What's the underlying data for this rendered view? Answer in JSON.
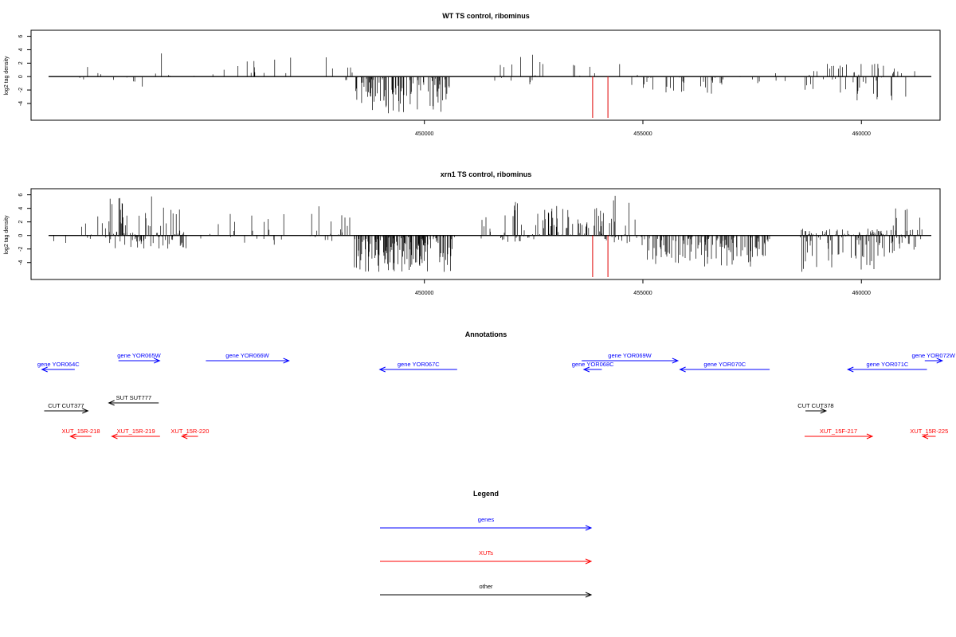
{
  "chart_data": [
    {
      "type": "bar",
      "title": "WT TS control, ribominus",
      "xlabel": "",
      "ylabel": "log2 tag density",
      "xlim": [
        441000,
        461800
      ],
      "ylim": [
        -6.5,
        6.9
      ],
      "xticks": [
        450000,
        455000,
        460000
      ],
      "yticks": [
        -4,
        -2,
        0,
        2,
        4,
        6
      ],
      "grid": false,
      "markers": [
        {
          "x": 453850,
          "color": "#e00000"
        },
        {
          "x": 454200,
          "color": "#e00000"
        }
      ],
      "regions": [
        {
          "start": 441420,
          "end": 441620,
          "min": -1.5,
          "max": 0.6,
          "density": 0.05
        },
        {
          "start": 441620,
          "end": 441850,
          "min": -3.0,
          "max": 1.0,
          "density": 0.06
        },
        {
          "start": 442000,
          "end": 443100,
          "min": -1.0,
          "max": 2.8,
          "density": 0.05
        },
        {
          "start": 443100,
          "end": 444300,
          "min": -2.8,
          "max": 3.5,
          "density": 0.05
        },
        {
          "start": 444300,
          "end": 444800,
          "min": 0.0,
          "max": 2.0,
          "density": 0.02
        },
        {
          "start": 445150,
          "end": 446100,
          "min": 0.0,
          "max": 2.4,
          "density": 0.04
        },
        {
          "start": 446100,
          "end": 447900,
          "min": 0.0,
          "max": 3.0,
          "density": 0.05
        },
        {
          "start": 447900,
          "end": 448400,
          "min": -0.6,
          "max": 3.0,
          "density": 0.09
        },
        {
          "start": 448400,
          "end": 450600,
          "min": -5.5,
          "max": 0.0,
          "density": 0.4
        },
        {
          "start": 451300,
          "end": 452500,
          "min": -1.6,
          "max": 3.6,
          "density": 0.05
        },
        {
          "start": 452500,
          "end": 454600,
          "min": 0.0,
          "max": 2.8,
          "density": 0.06
        },
        {
          "start": 454600,
          "end": 455000,
          "min": -1.4,
          "max": 4.7,
          "density": 0.07
        },
        {
          "start": 455000,
          "end": 457500,
          "min": -2.6,
          "max": 0.0,
          "density": 0.09
        },
        {
          "start": 457500,
          "end": 458600,
          "min": -1.2,
          "max": 0.0,
          "density": 0.04
        },
        {
          "start": 458000,
          "end": 458700,
          "min": -1.0,
          "max": 1.0,
          "density": 0.02
        },
        {
          "start": 458700,
          "end": 461100,
          "min": -3.6,
          "max": 2.0,
          "density": 0.2
        },
        {
          "start": 461100,
          "end": 461400,
          "min": -1.6,
          "max": 1.0,
          "density": 0.05
        }
      ]
    },
    {
      "type": "bar",
      "title": "xrn1 TS control, ribominus",
      "xlabel": "",
      "ylabel": "log2 tag density",
      "xlim": [
        441000,
        461800
      ],
      "ylim": [
        -6.5,
        6.9
      ],
      "xticks": [
        450000,
        455000,
        460000
      ],
      "yticks": [
        -4,
        -2,
        0,
        2,
        4,
        6
      ],
      "grid": false,
      "markers": [
        {
          "x": 453850,
          "color": "#e00000"
        },
        {
          "x": 454200,
          "color": "#e00000"
        }
      ],
      "regions": [
        {
          "start": 441420,
          "end": 441750,
          "min": -4.5,
          "max": 1.5,
          "density": 0.08
        },
        {
          "start": 441750,
          "end": 442200,
          "min": -1.5,
          "max": 1.5,
          "density": 0.05
        },
        {
          "start": 442200,
          "end": 443200,
          "min": -1.0,
          "max": 3.0,
          "density": 0.14
        },
        {
          "start": 442800,
          "end": 444500,
          "min": -2.0,
          "max": 5.8,
          "density": 0.45
        },
        {
          "start": 444500,
          "end": 446300,
          "min": -2.2,
          "max": 3.5,
          "density": 0.09
        },
        {
          "start": 446300,
          "end": 447900,
          "min": -1.8,
          "max": 4.4,
          "density": 0.09
        },
        {
          "start": 447800,
          "end": 448300,
          "min": 0.0,
          "max": 3.5,
          "density": 0.2
        },
        {
          "start": 448400,
          "end": 450700,
          "min": -5.5,
          "max": 0.0,
          "density": 0.5
        },
        {
          "start": 451300,
          "end": 452600,
          "min": -1.0,
          "max": 5.0,
          "density": 0.25
        },
        {
          "start": 452600,
          "end": 454100,
          "min": 0.0,
          "max": 4.5,
          "density": 0.25
        },
        {
          "start": 454100,
          "end": 454900,
          "min": -1.5,
          "max": 6.0,
          "density": 0.25
        },
        {
          "start": 454900,
          "end": 457900,
          "min": -4.6,
          "max": 0.0,
          "density": 0.4
        },
        {
          "start": 457800,
          "end": 458400,
          "min": 0.0,
          "max": 2.5,
          "density": 0.02
        },
        {
          "start": 458600,
          "end": 460700,
          "min": -5.5,
          "max": 1.0,
          "density": 0.45
        },
        {
          "start": 460700,
          "end": 461400,
          "min": -3.0,
          "max": 4.0,
          "density": 0.3
        }
      ]
    }
  ],
  "annotations": {
    "title": "Annotations",
    "xlim": [
      441000,
      461800
    ],
    "items": [
      {
        "label": "gene YOR064C",
        "category": "genes",
        "start": 442000,
        "end": 441250,
        "row": 1
      },
      {
        "label": "gene YOR065W",
        "category": "genes",
        "start": 443000,
        "end": 443940,
        "row": 0
      },
      {
        "label": "gene YOR066W",
        "category": "genes",
        "start": 445000,
        "end": 446900,
        "row": 0
      },
      {
        "label": "gene YOR067C",
        "category": "genes",
        "start": 450750,
        "end": 448980,
        "row": 1
      },
      {
        "label": "gene YOR068C",
        "category": "genes",
        "start": 454060,
        "end": 453650,
        "row": 1
      },
      {
        "label": "gene YOR069W",
        "category": "genes",
        "start": 453600,
        "end": 455800,
        "row": 0
      },
      {
        "label": "gene YOR070C",
        "category": "genes",
        "start": 457900,
        "end": 455850,
        "row": 1
      },
      {
        "label": "gene YOR071C",
        "category": "genes",
        "start": 461500,
        "end": 459690,
        "row": 1
      },
      {
        "label": "gene YOR072W",
        "category": "genes",
        "start": 461450,
        "end": 461850,
        "row": 0
      },
      {
        "label": "SUT SUT777",
        "category": "other",
        "start": 443920,
        "end": 442780,
        "row": 2
      },
      {
        "label": "CUT CUT377",
        "category": "other",
        "start": 441300,
        "end": 442300,
        "row": 3
      },
      {
        "label": "CUT CUT378",
        "category": "other",
        "start": 458720,
        "end": 459190,
        "row": 3
      },
      {
        "label": "XUT_15R-218",
        "category": "XUTs",
        "start": 442380,
        "end": 441900,
        "row": 4
      },
      {
        "label": "XUT_15R-219",
        "category": "XUTs",
        "start": 443950,
        "end": 442850,
        "row": 4
      },
      {
        "label": "XUT_15R-220",
        "category": "XUTs",
        "start": 444820,
        "end": 444450,
        "row": 4
      },
      {
        "label": "XUT_15F-217",
        "category": "XUTs",
        "start": 458700,
        "end": 460250,
        "row": 4
      },
      {
        "label": "XUT_15R-225",
        "category": "XUTs",
        "start": 461700,
        "end": 461400,
        "row": 4
      }
    ]
  },
  "legend": {
    "title": "Legend",
    "items": [
      {
        "label": "genes",
        "color": "#0000ff"
      },
      {
        "label": "XUTs",
        "color": "#ff0000"
      },
      {
        "label": "other",
        "color": "#000000"
      }
    ]
  },
  "colors": {
    "genes": "#0000ff",
    "XUTs": "#ff0000",
    "other": "#000000",
    "marker": "#e00000"
  }
}
